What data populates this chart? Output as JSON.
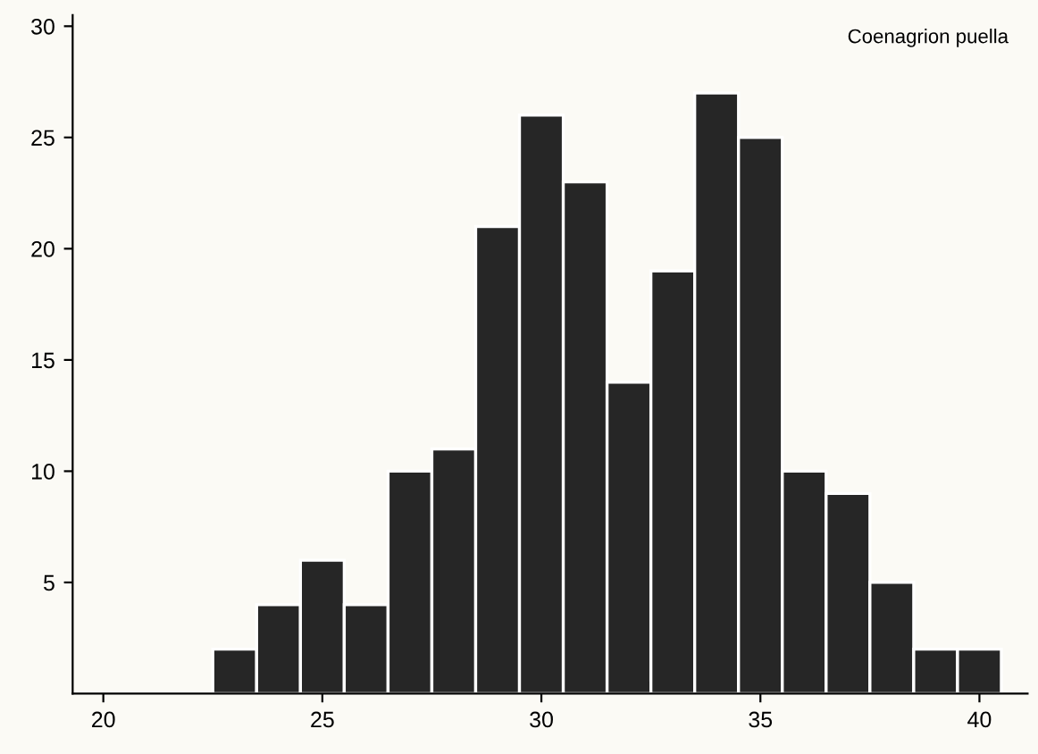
{
  "chart_data": {
    "type": "histogram",
    "bins": [
      22.5,
      23.5,
      24.5,
      25.5,
      26.5,
      27.5,
      28.5,
      29.5,
      30.5,
      31.5,
      32.5,
      33.5,
      34.5,
      35.5,
      36.5,
      37.5,
      38.5,
      39.5,
      40.5
    ],
    "values": [
      2,
      4,
      6,
      4,
      10,
      11,
      21,
      26,
      23,
      14,
      19,
      27,
      25,
      10,
      9,
      5,
      2,
      2
    ],
    "color": "#262626",
    "xlim": [
      19.3,
      41.1
    ],
    "ylim": [
      0,
      30.5
    ],
    "xticks": [
      20,
      25,
      30,
      35,
      40
    ],
    "yticks": [
      5,
      10,
      15,
      20,
      25,
      30
    ],
    "annotations": [
      "Coenagrion puella"
    ],
    "grid": false
  }
}
